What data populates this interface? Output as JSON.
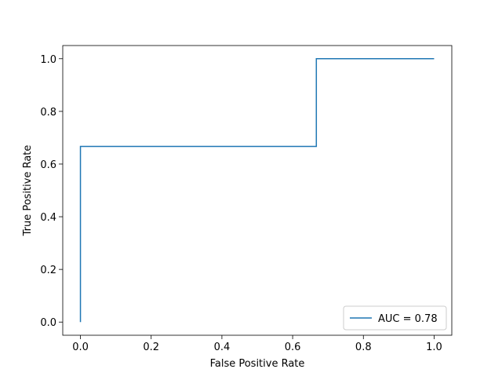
{
  "chart_data": {
    "type": "line",
    "xlabel": "False Positive Rate",
    "ylabel": "True Positive Rate",
    "x": [
      0,
      0,
      0.667,
      0.667,
      1
    ],
    "series": [
      {
        "name": "AUC = 0.78",
        "color": "#1f77b4",
        "values": [
          0,
          0.667,
          0.667,
          1,
          1
        ]
      }
    ],
    "xlim": [
      -0.05,
      1.05
    ],
    "ylim": [
      -0.05,
      1.05
    ],
    "xticks": [
      {
        "value": 0,
        "label": "0.0"
      },
      0.2,
      0.4,
      0.6,
      0.8,
      {
        "value": 1,
        "label": "1.0"
      }
    ],
    "yticks": [
      {
        "value": 0,
        "label": "0.0"
      },
      0.2,
      0.4,
      0.6,
      0.8,
      {
        "value": 1,
        "label": "1.0"
      }
    ],
    "grid": false,
    "legend": "lower right",
    "step": "post"
  }
}
